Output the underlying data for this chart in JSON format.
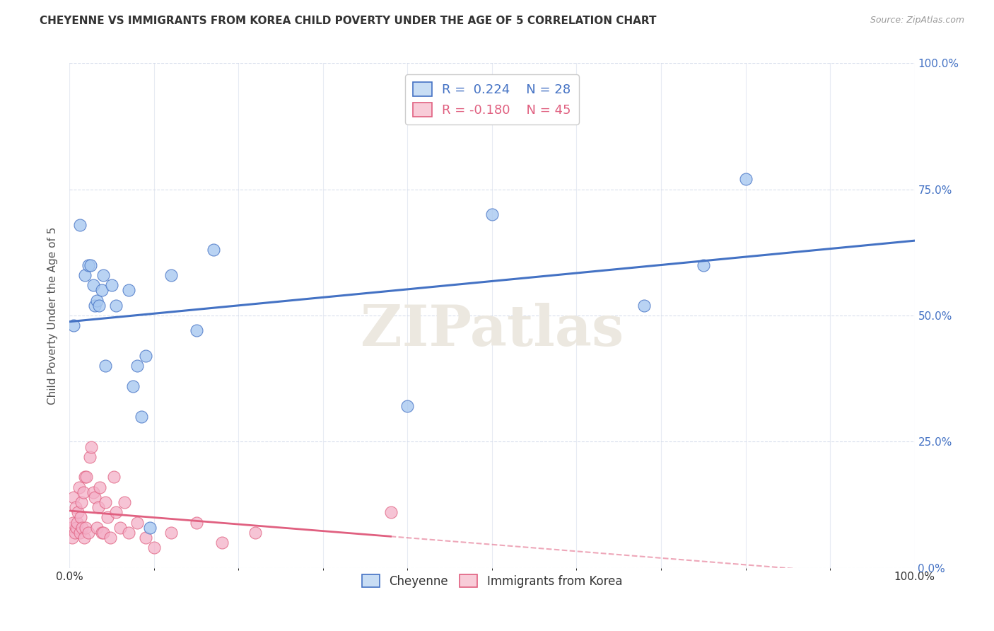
{
  "title": "CHEYENNE VS IMMIGRANTS FROM KOREA CHILD POVERTY UNDER THE AGE OF 5 CORRELATION CHART",
  "source": "Source: ZipAtlas.com",
  "ylabel": "Child Poverty Under the Age of 5",
  "ylabel_ticks": [
    "100.0%",
    "75.0%",
    "50.0%",
    "25.0%",
    "0.0%"
  ],
  "ylabel_tick_vals": [
    1.0,
    0.75,
    0.5,
    0.25,
    0.0
  ],
  "cheyenne_R": 0.224,
  "cheyenne_N": 28,
  "korea_R": -0.18,
  "korea_N": 45,
  "cheyenne_color": "#a8c8f0",
  "korea_color": "#f4b0c8",
  "cheyenne_line_color": "#4472c4",
  "korea_line_color": "#e06080",
  "background_color": "#ffffff",
  "grid_color": "#d0d8e8",
  "cheyenne_x": [
    0.005,
    0.012,
    0.018,
    0.022,
    0.025,
    0.028,
    0.03,
    0.032,
    0.035,
    0.038,
    0.04,
    0.042,
    0.05,
    0.055,
    0.07,
    0.075,
    0.08,
    0.085,
    0.09,
    0.095,
    0.12,
    0.15,
    0.17,
    0.4,
    0.5,
    0.68,
    0.75,
    0.8
  ],
  "cheyenne_y": [
    0.48,
    0.68,
    0.58,
    0.6,
    0.6,
    0.56,
    0.52,
    0.53,
    0.52,
    0.55,
    0.58,
    0.4,
    0.56,
    0.52,
    0.55,
    0.36,
    0.4,
    0.3,
    0.42,
    0.08,
    0.58,
    0.47,
    0.63,
    0.32,
    0.7,
    0.52,
    0.6,
    0.77
  ],
  "korea_x": [
    0.002,
    0.003,
    0.004,
    0.005,
    0.006,
    0.007,
    0.008,
    0.009,
    0.01,
    0.011,
    0.012,
    0.013,
    0.014,
    0.015,
    0.016,
    0.017,
    0.018,
    0.019,
    0.02,
    0.022,
    0.024,
    0.026,
    0.028,
    0.03,
    0.032,
    0.034,
    0.036,
    0.038,
    0.04,
    0.042,
    0.045,
    0.048,
    0.052,
    0.055,
    0.06,
    0.065,
    0.07,
    0.08,
    0.09,
    0.1,
    0.12,
    0.15,
    0.18,
    0.22,
    0.38
  ],
  "korea_y": [
    0.08,
    0.06,
    0.09,
    0.14,
    0.07,
    0.12,
    0.08,
    0.09,
    0.11,
    0.16,
    0.07,
    0.1,
    0.13,
    0.08,
    0.15,
    0.06,
    0.18,
    0.08,
    0.18,
    0.07,
    0.22,
    0.24,
    0.15,
    0.14,
    0.08,
    0.12,
    0.16,
    0.07,
    0.07,
    0.13,
    0.1,
    0.06,
    0.18,
    0.11,
    0.08,
    0.13,
    0.07,
    0.09,
    0.06,
    0.04,
    0.07,
    0.09,
    0.05,
    0.07,
    0.11
  ],
  "legend_box_color_cheyenne": "#c8ddf4",
  "legend_box_color_korea": "#f8ccd8",
  "watermark_text": "ZIPatlas",
  "watermark_color": "#ece8e0"
}
